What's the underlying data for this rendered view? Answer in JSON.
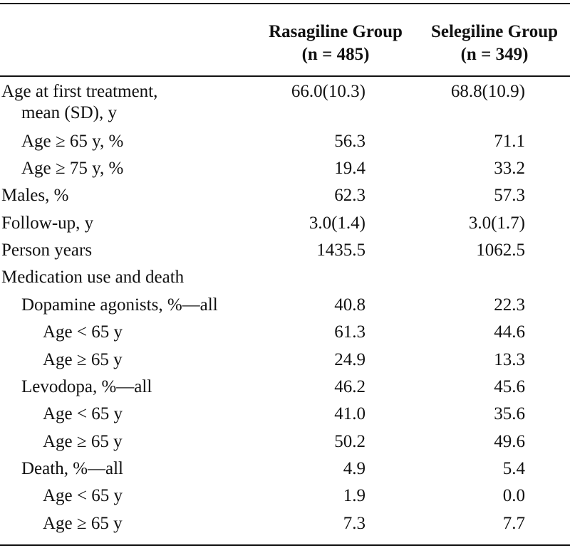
{
  "table": {
    "header": {
      "group_a": {
        "name": "Rasagiline Group",
        "n": "(n = 485)"
      },
      "group_b": {
        "name": "Selegiline Group",
        "n": "(n = 349)"
      }
    },
    "rows": [
      {
        "label": "Age at first treatment,",
        "label_cont": "mean (SD), y",
        "a": "66.0(10.3)",
        "b": "68.8(10.9)"
      },
      {
        "label": "Age ≥ 65 y, %",
        "a": "56.3",
        "b": "71.1"
      },
      {
        "label": "Age ≥ 75 y, %",
        "a": "19.4",
        "b": "33.2"
      },
      {
        "label": "Males, %",
        "a": "62.3",
        "b": "57.3"
      },
      {
        "label": "Follow-up, y",
        "a": "3.0(1.4)",
        "b": "3.0(1.7)"
      },
      {
        "label": "Person years",
        "a": "1435.5",
        "b": "1062.5"
      },
      {
        "label": "Medication use and death",
        "a": "",
        "b": ""
      },
      {
        "label": "Dopamine agonists, %—all",
        "a": "40.8",
        "b": "22.3"
      },
      {
        "label": "Age < 65 y",
        "a": "61.3",
        "b": "44.6"
      },
      {
        "label": "Age ≥ 65 y",
        "a": "24.9",
        "b": "13.3"
      },
      {
        "label": "Levodopa, %—all",
        "a": "46.2",
        "b": "45.6"
      },
      {
        "label": "Age < 65 y",
        "a": "41.0",
        "b": "35.6"
      },
      {
        "label": "Age ≥ 65 y",
        "a": "50.2",
        "b": "49.6"
      },
      {
        "label": "Death, %—all",
        "a": "4.9",
        "b": "5.4"
      },
      {
        "label": "Age < 65 y",
        "a": "1.9",
        "b": "0.0"
      },
      {
        "label": "Age ≥ 65 y",
        "a": "7.3",
        "b": "7.7"
      }
    ]
  }
}
